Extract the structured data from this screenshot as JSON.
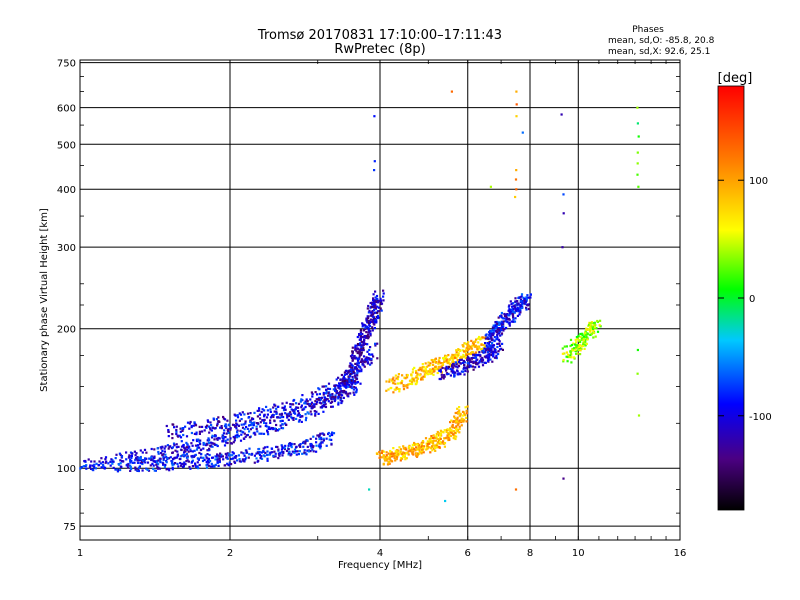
{
  "chart_data": {
    "type": "scatter",
    "title": "Tromsø 20170831 17:10:00–17:11:43",
    "subtitle": "RwPretec (8p)",
    "xlabel": "Frequency [MHz]",
    "ylabel": "Stationary phase Virtual Height [km]",
    "xscale": "log",
    "yscale": "log",
    "xlim": [
      1,
      16
    ],
    "ylim": [
      70,
      760
    ],
    "xticks": [
      1,
      2,
      4,
      6,
      8,
      10,
      16
    ],
    "xtick_labels": [
      "1",
      "2",
      "4",
      "6",
      "8",
      "10",
      "16"
    ],
    "yticks": [
      75,
      100,
      200,
      300,
      400,
      500,
      600,
      750
    ],
    "ytick_labels": [
      "75",
      "100",
      "200",
      "300",
      "400",
      "500",
      "600",
      "750"
    ],
    "grid": true,
    "stats": {
      "title": "Phases",
      "line1": "mean, sd,O: -85.8, 20.8",
      "line2": "mean, sd,X:  92.6, 25.1"
    },
    "colorbar": {
      "label": "[deg]",
      "range": [
        -180,
        180
      ],
      "ticks": [
        100,
        0,
        -100
      ],
      "tick_labels": [
        "100",
        "0",
        "-100"
      ],
      "colormap": "rainbow"
    },
    "traces": [
      {
        "name": "low_O_trace",
        "phase": -90,
        "x": [
          1.0,
          1.2,
          1.4,
          1.6,
          1.8,
          2.0,
          2.3,
          2.6,
          2.9,
          3.2
        ],
        "y": [
          102,
          102,
          102,
          103,
          104,
          105,
          107,
          109,
          112,
          117
        ]
      },
      {
        "name": "second_O_trace",
        "phase": -95,
        "x": [
          1.2,
          1.4,
          1.6,
          1.8,
          2.0,
          2.3,
          2.6,
          3.0,
          3.3,
          3.6
        ],
        "y": [
          104,
          107,
          110,
          113,
          117,
          122,
          127,
          135,
          143,
          152
        ]
      },
      {
        "name": "F_O_upper",
        "phase": -100,
        "x": [
          1.5,
          1.8,
          2.1,
          2.5,
          2.9,
          3.3,
          3.6,
          3.9
        ],
        "y": [
          120,
          123,
          127,
          133,
          140,
          150,
          165,
          180
        ]
      },
      {
        "name": "F_O_cusp",
        "phase": -110,
        "x": [
          3.3,
          3.5,
          3.6,
          3.7,
          3.8,
          3.9,
          4.0
        ],
        "y": [
          145,
          160,
          175,
          190,
          205,
          220,
          235
        ]
      },
      {
        "name": "F_X_trace",
        "phase": 95,
        "x": [
          4.0,
          4.3,
          4.6,
          4.9,
          5.2,
          5.5,
          5.7,
          5.9
        ],
        "y": [
          105,
          107,
          109,
          111,
          114,
          118,
          124,
          133
        ]
      },
      {
        "name": "F_X_upper",
        "phase": 90,
        "x": [
          4.2,
          4.6,
          5.0,
          5.3,
          5.7,
          6.1,
          6.5
        ],
        "y": [
          150,
          157,
          163,
          168,
          175,
          182,
          188
        ]
      },
      {
        "name": "F2_O_upper",
        "phase": -105,
        "x": [
          5.3,
          5.8,
          6.2,
          6.6,
          6.9
        ],
        "y": [
          160,
          165,
          170,
          175,
          180
        ]
      },
      {
        "name": "F2_cusp",
        "phase": -95,
        "x": [
          6.6,
          6.8,
          7.0,
          7.3,
          7.6,
          7.9
        ],
        "y": [
          185,
          195,
          205,
          215,
          225,
          230
        ]
      },
      {
        "name": "high_echoes",
        "phase": 40,
        "x": [
          9.5,
          10.0,
          10.5,
          10.9
        ],
        "y": [
          175,
          185,
          195,
          205
        ]
      }
    ],
    "sparse_columns": [
      {
        "x": 3.9,
        "y": [
          440,
          460,
          575
        ],
        "phase": -100
      },
      {
        "x": 5.6,
        "y": [
          650
        ],
        "phase": 130
      },
      {
        "x": 6.7,
        "y": [
          405
        ],
        "phase": 60
      },
      {
        "x": 7.5,
        "y": [
          90,
          385,
          400,
          420,
          440,
          575,
          610,
          650
        ],
        "phase": 110
      },
      {
        "x": 7.7,
        "y": [
          530
        ],
        "phase": -90
      },
      {
        "x": 9.3,
        "y": [
          95,
          300,
          355,
          390,
          580
        ],
        "phase": -100
      },
      {
        "x": 13.2,
        "y": [
          130,
          160,
          180,
          405,
          430,
          455,
          480,
          520,
          555,
          600
        ],
        "phase": 10
      },
      {
        "x": 3.8,
        "y": [
          90
        ],
        "phase": -20
      },
      {
        "x": 5.4,
        "y": [
          85
        ],
        "phase": -20
      }
    ]
  }
}
